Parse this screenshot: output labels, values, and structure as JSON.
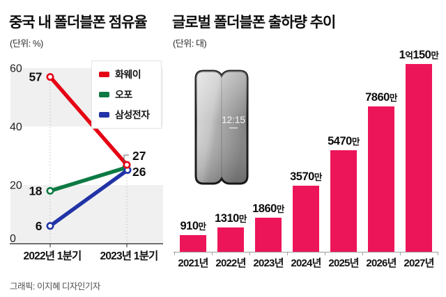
{
  "chart_data": [
    {
      "type": "line",
      "title": "중국 내 폴더블폰 점유율",
      "unit_label": "(단위: %)",
      "categories": [
        "2022년 1분기",
        "2023년 1분기"
      ],
      "series": [
        {
          "name": "화웨이",
          "color": "#e50014",
          "values": [
            57,
            27
          ]
        },
        {
          "name": "오포",
          "color": "#0d7a43",
          "values": [
            18,
            26
          ]
        },
        {
          "name": "삼성전자",
          "color": "#2133a6",
          "values": [
            6,
            26
          ]
        }
      ],
      "y_ticks": [
        60,
        40,
        20,
        0
      ],
      "ylim": [
        0,
        60
      ],
      "grid": "alternating-bands",
      "legend_position": "top-right",
      "point_labels": {
        "start": [
          "57",
          "18",
          "6"
        ],
        "end": [
          "27",
          "26"
        ]
      }
    },
    {
      "type": "bar",
      "title": "글로벌 폴더블폰 출하량 추이",
      "unit_label": "(단위: 대)",
      "categories": [
        "2021년",
        "2022년",
        "2023년",
        "2024년",
        "2025년",
        "2026년",
        "2027년"
      ],
      "values": [
        910,
        1310,
        1860,
        3570,
        5470,
        7860,
        10150
      ],
      "value_labels": [
        "910만",
        "1310만",
        "1860만",
        "3570만",
        "5470만",
        "7860만",
        "1억150만"
      ],
      "value_unit": "만",
      "bar_color": "#ed1559",
      "ylim": [
        0,
        10150
      ],
      "grid": "off",
      "legend_position": "none"
    }
  ],
  "phone": {
    "clock_time": "12:15"
  },
  "footer": "그래픽: 이지혜 디자인기자"
}
